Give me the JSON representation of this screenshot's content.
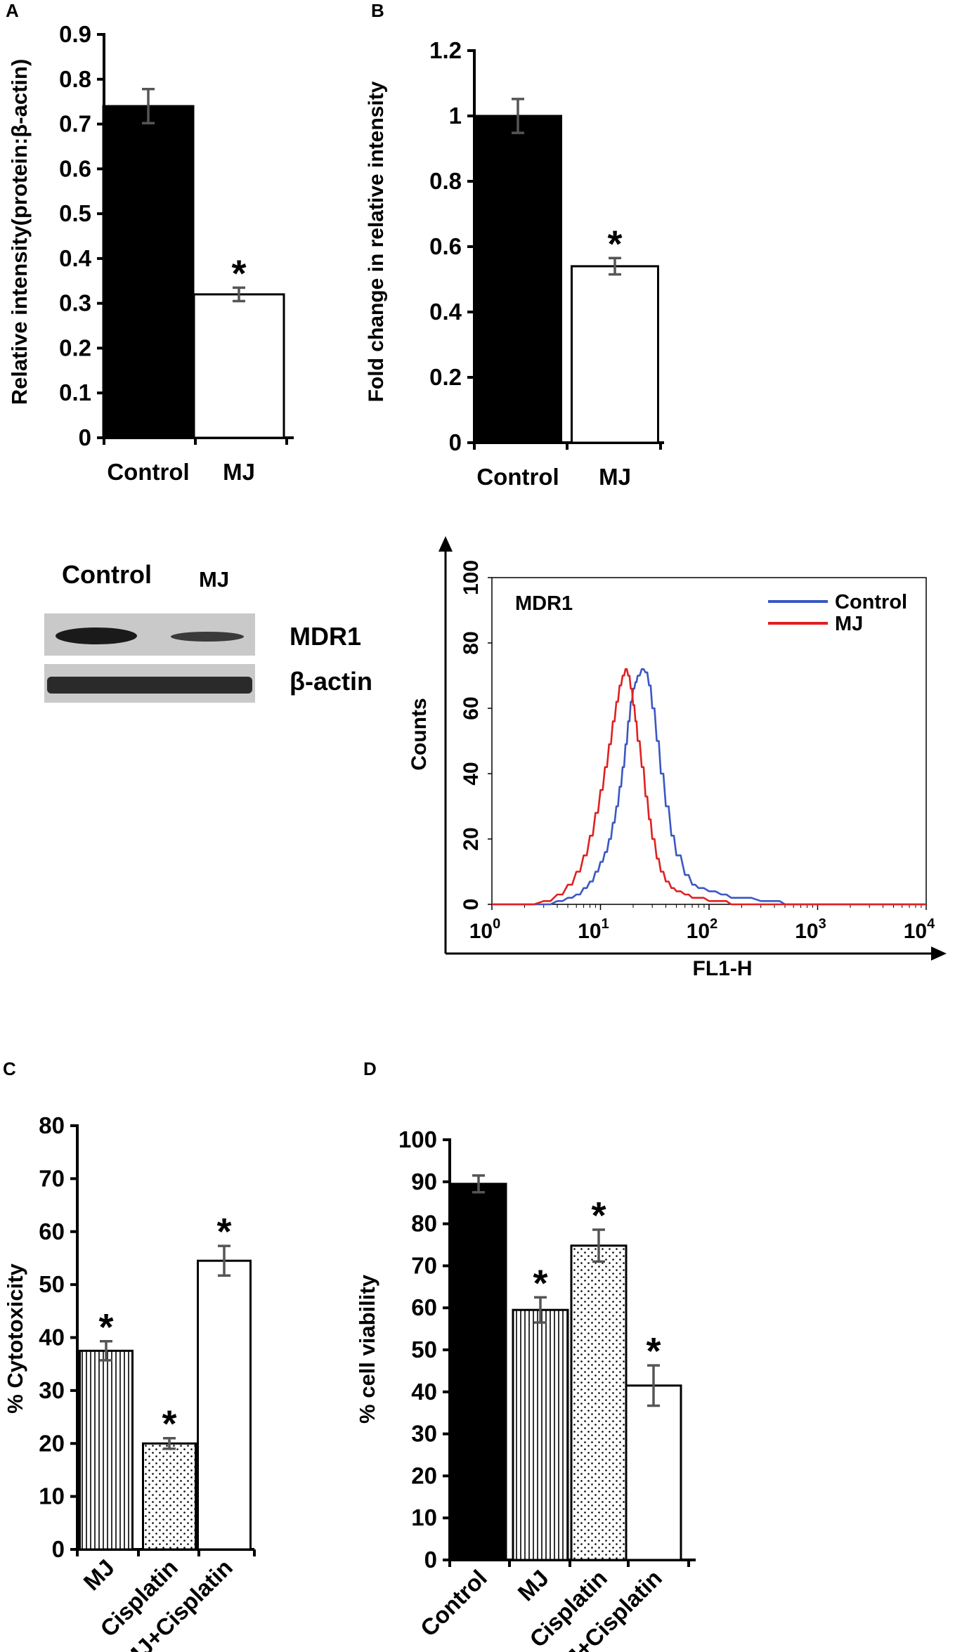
{
  "colors": {
    "black_fill": "#000000",
    "white_fill": "#ffffff",
    "error_bar": "#555555",
    "control_line": "#3a57c4",
    "mj_line": "#e02020",
    "gel_background": "#c9c9c9",
    "band": "#1a1a1a"
  },
  "chart_data": [
    {
      "panel": "A",
      "type": "bar",
      "ylabel": "Relative intensity(protein:β-actin)",
      "ylim": [
        0,
        0.9
      ],
      "yticks": [
        0,
        0.1,
        0.2,
        0.3,
        0.4,
        0.5,
        0.6,
        0.7,
        0.8,
        0.9
      ],
      "ytick_labels": [
        "0",
        "0.1",
        "0.2",
        "0.3",
        "0.4",
        "0.5",
        "0.6",
        "0.7",
        "0.8",
        "0.9"
      ],
      "categories": [
        "Control",
        "MJ"
      ],
      "values": [
        0.74,
        0.32
      ],
      "errors": [
        0.038,
        0.015
      ],
      "fills": [
        "solid-black",
        "white"
      ],
      "significance": [
        "",
        "*"
      ]
    },
    {
      "panel": "B",
      "type": "bar",
      "ylabel": "Fold change in relative intensity",
      "ylim": [
        0,
        1.2
      ],
      "yticks": [
        0,
        0.2,
        0.4,
        0.6,
        0.8,
        1,
        1.2
      ],
      "ytick_labels": [
        "0",
        "0.2",
        "0.4",
        "0.6",
        "0.8",
        "1",
        "1.2"
      ],
      "categories": [
        "Control",
        "MJ"
      ],
      "values": [
        1.0,
        0.54
      ],
      "errors": [
        0.052,
        0.025
      ],
      "fills": [
        "solid-black",
        "white"
      ],
      "significance": [
        "",
        "*"
      ]
    },
    {
      "panel": "flow-histogram",
      "type": "line",
      "title": "MDR1",
      "xlabel": "FL1-H",
      "ylabel": "Counts",
      "xscale": "log",
      "xlim": [
        1,
        10000
      ],
      "ylim": [
        0,
        100
      ],
      "xtick_bases": [
        "10",
        "10",
        "10",
        "10",
        "10"
      ],
      "xtick_exponents": [
        "0",
        "1",
        "2",
        "3",
        "4"
      ],
      "yticks": [
        0,
        20,
        40,
        60,
        80,
        100
      ],
      "ytick_labels": [
        "0",
        "20",
        "40",
        "60",
        "80",
        "100"
      ],
      "legend_position": "top-right",
      "series": [
        {
          "name": "Control",
          "color": "#3a57c4",
          "x": [
            1,
            2,
            3,
            4,
            5,
            6,
            7,
            8,
            9,
            10,
            11,
            12,
            13,
            14,
            15,
            16,
            17,
            18,
            19,
            20,
            21,
            22,
            24,
            26,
            28,
            30,
            33,
            36,
            40,
            45,
            50,
            60,
            70,
            80,
            100,
            130,
            160,
            200,
            300,
            400,
            500,
            700,
            1000,
            10000
          ],
          "y": [
            0,
            0,
            0,
            1,
            2,
            3,
            5,
            7,
            10,
            13,
            16,
            20,
            25,
            30,
            36,
            42,
            49,
            56,
            62,
            66,
            68,
            70,
            72,
            71,
            67,
            60,
            50,
            40,
            30,
            21,
            15,
            9,
            6,
            5,
            4,
            3,
            2,
            2,
            1,
            1,
            0,
            0,
            0,
            0
          ]
        },
        {
          "name": "MJ",
          "color": "#e02020",
          "x": [
            1,
            2,
            3,
            4,
            5,
            6,
            7,
            8,
            9,
            10,
            11,
            12,
            13,
            14,
            15,
            16,
            17,
            18,
            19,
            20,
            21,
            22,
            24,
            26,
            28,
            30,
            33,
            36,
            40,
            45,
            50,
            60,
            70,
            80,
            100,
            130,
            160,
            200,
            300,
            10000
          ],
          "y": [
            0,
            0,
            1,
            3,
            6,
            10,
            15,
            21,
            28,
            35,
            42,
            49,
            56,
            62,
            67,
            70,
            72,
            70,
            66,
            61,
            56,
            50,
            42,
            33,
            26,
            20,
            14,
            10,
            7,
            5,
            4,
            3,
            2,
            2,
            1,
            1,
            0,
            0,
            0,
            0
          ]
        }
      ]
    },
    {
      "panel": "C",
      "type": "bar",
      "ylabel": "% Cytotoxicity",
      "ylim": [
        0,
        80
      ],
      "yticks": [
        0,
        10,
        20,
        30,
        40,
        50,
        60,
        70,
        80
      ],
      "ytick_labels": [
        "0",
        "10",
        "20",
        "30",
        "40",
        "50",
        "60",
        "70",
        "80"
      ],
      "categories": [
        "MJ",
        "Cisplatin",
        "MJ+Cisplatin"
      ],
      "values": [
        37.5,
        20,
        54.5
      ],
      "errors": [
        1.8,
        1.0,
        2.8
      ],
      "fills": [
        "vertical-stripes",
        "dots",
        "white"
      ],
      "significance": [
        "*",
        "*",
        "*"
      ]
    },
    {
      "panel": "D",
      "type": "bar",
      "ylabel": "% cell viability",
      "ylim": [
        0,
        100
      ],
      "yticks": [
        0,
        10,
        20,
        30,
        40,
        50,
        60,
        70,
        80,
        90,
        100
      ],
      "ytick_labels": [
        "0",
        "10",
        "20",
        "30",
        "40",
        "50",
        "60",
        "70",
        "80",
        "90",
        "100"
      ],
      "categories": [
        "Control",
        "MJ",
        "Cisplatin",
        "MJ+Cisplatin"
      ],
      "values": [
        89.5,
        59.5,
        74.8,
        41.5
      ],
      "errors": [
        2.0,
        3.0,
        3.8,
        4.8
      ],
      "fills": [
        "solid-black",
        "vertical-stripes",
        "dots",
        "white"
      ],
      "significance": [
        "",
        "*",
        "*",
        "*"
      ]
    }
  ],
  "western_blot": {
    "lane_labels": [
      "Control",
      "MJ"
    ],
    "band_labels": [
      "MDR1",
      "β-actin"
    ]
  }
}
